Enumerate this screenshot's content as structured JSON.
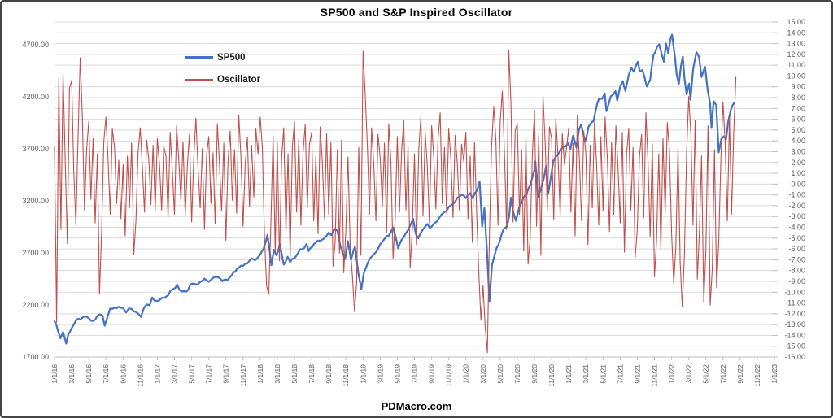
{
  "page": {
    "footer": "PDMacro.com"
  },
  "chart_data": {
    "type": "line",
    "title": "SP500 and S&P Inspired Oscillator",
    "legend": [
      {
        "name": "SP500",
        "color": "#4472C4"
      },
      {
        "name": "Oscillator",
        "color": "#C0504D"
      }
    ],
    "grid_color": "#D9D9D9",
    "axis_line_color": "#BFBFBF",
    "axis_text_color": "#595959",
    "x_axis": {
      "months_total": 84,
      "labels": [
        "1/1/16",
        "3/1/16",
        "5/1/16",
        "7/1/16",
        "9/1/16",
        "11/1/16",
        "1/1/17",
        "3/1/17",
        "5/1/17",
        "7/1/17",
        "9/1/17",
        "11/1/17",
        "1/1/18",
        "3/1/18",
        "5/1/18",
        "7/1/18",
        "9/1/18",
        "11/1/18",
        "1/1/19",
        "3/1/19",
        "5/1/19",
        "7/1/19",
        "9/1/19",
        "11/1/19",
        "1/1/20",
        "3/1/20",
        "5/1/20",
        "7/1/20",
        "9/1/20",
        "11/1/20",
        "1/1/21",
        "3/1/21",
        "5/1/21",
        "7/1/21",
        "9/1/21",
        "11/1/21",
        "1/1/22",
        "3/1/22",
        "5/1/22",
        "7/1/22",
        "9/1/22",
        "11/1/22",
        "1/1/23"
      ],
      "label_months_step": 2
    },
    "primary_y_axis": {
      "min": 1700,
      "max": 4920,
      "tick_values": [
        4700,
        4200,
        3700,
        3200,
        2700,
        2200,
        1700
      ],
      "format_decimals": 2
    },
    "secondary_y_axis": {
      "min": -16,
      "max": 15,
      "step": 1,
      "format_decimals": 2
    },
    "series": [
      {
        "name": "SP500",
        "axis": "primary",
        "color": "#4472C4",
        "width": 2.2,
        "points": [
          [
            0,
            2044
          ],
          [
            0.2,
            2013
          ],
          [
            0.45,
            1940
          ],
          [
            0.7,
            1880
          ],
          [
            1.0,
            1940
          ],
          [
            1.37,
            1829
          ],
          [
            1.6,
            1918
          ],
          [
            2.0,
            1978
          ],
          [
            2.5,
            2050
          ],
          [
            3.0,
            2060
          ],
          [
            3.6,
            2092
          ],
          [
            4.1,
            2065
          ],
          [
            4.5,
            2048
          ],
          [
            5.0,
            2096
          ],
          [
            5.6,
            2099
          ],
          [
            5.85,
            2001
          ],
          [
            6.2,
            2090
          ],
          [
            6.5,
            2166
          ],
          [
            7.0,
            2173
          ],
          [
            7.5,
            2184
          ],
          [
            8.0,
            2171
          ],
          [
            8.35,
            2128
          ],
          [
            8.7,
            2168
          ],
          [
            9.0,
            2161
          ],
          [
            9.5,
            2133
          ],
          [
            10.1,
            2085
          ],
          [
            10.4,
            2164
          ],
          [
            10.8,
            2205
          ],
          [
            11.1,
            2198
          ],
          [
            11.4,
            2271
          ],
          [
            11.9,
            2239
          ],
          [
            12.5,
            2269
          ],
          [
            13.0,
            2280
          ],
          [
            13.8,
            2351
          ],
          [
            14.1,
            2364
          ],
          [
            14.3,
            2396
          ],
          [
            14.6,
            2344
          ],
          [
            15.4,
            2329
          ],
          [
            15.8,
            2389
          ],
          [
            16.5,
            2400
          ],
          [
            16.9,
            2416
          ],
          [
            17.2,
            2430
          ],
          [
            17.5,
            2453
          ],
          [
            18.0,
            2423
          ],
          [
            18.5,
            2460
          ],
          [
            19.0,
            2470
          ],
          [
            19.6,
            2428
          ],
          [
            20.0,
            2444
          ],
          [
            20.4,
            2461
          ],
          [
            20.7,
            2489
          ],
          [
            21.1,
            2519
          ],
          [
            21.5,
            2557
          ],
          [
            22.0,
            2575
          ],
          [
            22.5,
            2599
          ],
          [
            23.0,
            2648
          ],
          [
            23.4,
            2629
          ],
          [
            23.9,
            2674
          ],
          [
            24.4,
            2743
          ],
          [
            24.85,
            2873
          ],
          [
            25.3,
            2581
          ],
          [
            25.6,
            2731
          ],
          [
            25.9,
            2678
          ],
          [
            26.3,
            2787
          ],
          [
            26.75,
            2588
          ],
          [
            27.2,
            2663
          ],
          [
            27.5,
            2614
          ],
          [
            28.0,
            2648
          ],
          [
            28.5,
            2712
          ],
          [
            28.9,
            2735
          ],
          [
            29.4,
            2786
          ],
          [
            29.65,
            2718
          ],
          [
            30.1,
            2759
          ],
          [
            30.5,
            2801
          ],
          [
            31.0,
            2816
          ],
          [
            31.5,
            2840
          ],
          [
            32.0,
            2896
          ],
          [
            32.3,
            2871
          ],
          [
            32.65,
            2931
          ],
          [
            33.0,
            2914
          ],
          [
            33.35,
            2768
          ],
          [
            33.9,
            2641
          ],
          [
            34.25,
            2814
          ],
          [
            34.6,
            2633
          ],
          [
            35.05,
            2760
          ],
          [
            35.45,
            2506
          ],
          [
            35.8,
            2351
          ],
          [
            36.1,
            2510
          ],
          [
            36.5,
            2596
          ],
          [
            37.0,
            2664
          ],
          [
            37.5,
            2707
          ],
          [
            38.0,
            2784
          ],
          [
            38.5,
            2834
          ],
          [
            39.0,
            2867
          ],
          [
            39.5,
            2946
          ],
          [
            40.1,
            2744
          ],
          [
            40.5,
            2826
          ],
          [
            41.0,
            2890
          ],
          [
            41.5,
            2964
          ],
          [
            41.85,
            3026
          ],
          [
            42.15,
            2883
          ],
          [
            42.45,
            2841
          ],
          [
            42.7,
            2889
          ],
          [
            43.0,
            2926
          ],
          [
            43.5,
            2979
          ],
          [
            43.8,
            2940
          ],
          [
            44.3,
            2986
          ],
          [
            44.9,
            3039
          ],
          [
            45.5,
            3094
          ],
          [
            46.0,
            3141
          ],
          [
            46.5,
            3169
          ],
          [
            47.0,
            3231
          ],
          [
            47.5,
            3258
          ],
          [
            48.0,
            3226
          ],
          [
            48.5,
            3274
          ],
          [
            48.8,
            3226
          ],
          [
            49.3,
            3298
          ],
          [
            49.6,
            3386
          ],
          [
            49.9,
            2954
          ],
          [
            50.15,
            3130
          ],
          [
            50.45,
            2741
          ],
          [
            50.75,
            2237
          ],
          [
            51.05,
            2584
          ],
          [
            51.3,
            2663
          ],
          [
            51.6,
            2750
          ],
          [
            52.0,
            2830
          ],
          [
            52.4,
            2930
          ],
          [
            52.8,
            2955
          ],
          [
            53.05,
            3055
          ],
          [
            53.25,
            3232
          ],
          [
            53.5,
            3098
          ],
          [
            53.85,
            3009
          ],
          [
            54.2,
            3130
          ],
          [
            54.5,
            3185
          ],
          [
            54.75,
            3235
          ],
          [
            55.1,
            3271
          ],
          [
            55.5,
            3349
          ],
          [
            56.0,
            3500
          ],
          [
            56.1,
            3581
          ],
          [
            56.4,
            3237
          ],
          [
            56.7,
            3298
          ],
          [
            57.1,
            3419
          ],
          [
            57.35,
            3534
          ],
          [
            57.6,
            3270
          ],
          [
            57.95,
            3443
          ],
          [
            58.2,
            3585
          ],
          [
            58.6,
            3635
          ],
          [
            58.9,
            3669
          ],
          [
            59.4,
            3722
          ],
          [
            59.9,
            3756
          ],
          [
            60.2,
            3700
          ],
          [
            60.5,
            3826
          ],
          [
            60.9,
            3714
          ],
          [
            61.2,
            3886
          ],
          [
            61.45,
            3935
          ],
          [
            61.9,
            3768
          ],
          [
            62.3,
            3910
          ],
          [
            62.55,
            3943
          ],
          [
            62.9,
            3973
          ],
          [
            63.3,
            4128
          ],
          [
            63.55,
            4185
          ],
          [
            63.9,
            4181
          ],
          [
            64.2,
            4233
          ],
          [
            64.4,
            4063
          ],
          [
            64.9,
            4204
          ],
          [
            65.2,
            4227
          ],
          [
            65.45,
            4255
          ],
          [
            65.65,
            4166
          ],
          [
            66.0,
            4298
          ],
          [
            66.3,
            4352
          ],
          [
            66.6,
            4258
          ],
          [
            67.0,
            4411
          ],
          [
            67.3,
            4480
          ],
          [
            67.6,
            4441
          ],
          [
            68.05,
            4537
          ],
          [
            68.3,
            4443
          ],
          [
            68.6,
            4458
          ],
          [
            69.1,
            4300
          ],
          [
            69.5,
            4363
          ],
          [
            69.9,
            4605
          ],
          [
            70.3,
            4682
          ],
          [
            70.55,
            4705
          ],
          [
            70.9,
            4594
          ],
          [
            71.1,
            4538
          ],
          [
            71.35,
            4713
          ],
          [
            71.6,
            4621
          ],
          [
            71.9,
            4766
          ],
          [
            72.05,
            4797
          ],
          [
            72.4,
            4577
          ],
          [
            72.6,
            4410
          ],
          [
            72.85,
            4326
          ],
          [
            73.1,
            4501
          ],
          [
            73.3,
            4587
          ],
          [
            73.5,
            4380
          ],
          [
            73.75,
            4225
          ],
          [
            74.05,
            4328
          ],
          [
            74.2,
            4173
          ],
          [
            74.5,
            4456
          ],
          [
            74.9,
            4631
          ],
          [
            75.2,
            4583
          ],
          [
            75.5,
            4392
          ],
          [
            75.9,
            4488
          ],
          [
            76.2,
            4271
          ],
          [
            76.5,
            4131
          ],
          [
            76.65,
            3901
          ],
          [
            76.9,
            4158
          ],
          [
            77.2,
            4121
          ],
          [
            77.5,
            3667
          ],
          [
            77.8,
            3795
          ],
          [
            78.1,
            3821
          ],
          [
            78.35,
            3790
          ],
          [
            78.6,
            3961
          ],
          [
            78.9,
            4072
          ],
          [
            79.1,
            4118
          ],
          [
            79.3,
            4145
          ]
        ]
      },
      {
        "name": "Oscillator",
        "axis": "secondary",
        "color": "#C0504D",
        "width": 1.1,
        "start_month": 0,
        "step_month": 0.25,
        "values": [
          3.5,
          -12.8,
          9.8,
          -4.2,
          10.3,
          2.1,
          -5.5,
          8.9,
          9.6,
          1.2,
          -3.8,
          4.5,
          11.7,
          6.3,
          -2.5,
          3.2,
          5.8,
          -1.4,
          4.2,
          -3.6,
          2.8,
          -10.2,
          -4.5,
          3.9,
          6.2,
          2.4,
          -2.8,
          5.1,
          3.4,
          -1.8,
          2.2,
          -3.2,
          1.8,
          -4.8,
          2.6,
          -2.2,
          3.8,
          -6.5,
          -3.4,
          2.9,
          5.2,
          1.6,
          -2.6,
          4.1,
          2.3,
          -1.9,
          3.6,
          -2.4,
          4.2,
          1.8,
          -2.4,
          3.5,
          2.6,
          -3.1,
          4.8,
          1.2,
          -2.8,
          5.4,
          2.2,
          -1.6,
          3.9,
          -2.9,
          1.7,
          4.6,
          -3.5,
          2.4,
          6.1,
          1.4,
          -2.2,
          3.3,
          -4.2,
          2.7,
          4.4,
          -1.8,
          2.9,
          -3.7,
          5.6,
          1.9,
          -2.5,
          3.8,
          -5.2,
          2.1,
          4.9,
          -1.5,
          3.2,
          -2.7,
          6.4,
          2.5,
          -3.9,
          1.8,
          4.3,
          -2.1,
          3.6,
          -1.2,
          5.1,
          2.8,
          6.2,
          3.4,
          -4.8,
          -9.5,
          -10.2,
          -3.6,
          4.5,
          -6.2,
          3.8,
          -7.1,
          2.4,
          5.2,
          -4.4,
          2.8,
          -6.8,
          3.5,
          5.8,
          -2.6,
          4.2,
          -3.8,
          2.9,
          5.5,
          -2.2,
          3.7,
          4.8,
          -3.4,
          2.6,
          -4.6,
          5.3,
          2.1,
          -3.2,
          4.7,
          -2.8,
          3.9,
          -7.6,
          -5.4,
          3.2,
          -6.4,
          4.1,
          -8.2,
          -4.2,
          2.5,
          -5.8,
          -8.4,
          -11.8,
          -9.1,
          3.4,
          -6.6,
          12.3,
          8.4,
          3.6,
          -2.8,
          5.2,
          1.8,
          -3.4,
          4.6,
          2.4,
          -2.1,
          3.8,
          -4.5,
          5.6,
          2.2,
          -6.9,
          -3.2,
          4.4,
          -2.6,
          3.1,
          5.9,
          -2.4,
          3.5,
          -7.8,
          -4.1,
          2.8,
          -5.6,
          3.3,
          6.2,
          -2.9,
          4.8,
          1.6,
          -3.6,
          5.4,
          2.6,
          -2.3,
          4.2,
          6.6,
          -1.8,
          3.4,
          -2.7,
          5.1,
          2.3,
          -3.1,
          4.5,
          1.9,
          -2.5,
          3.7,
          2.1,
          4.8,
          -3.2,
          2.6,
          -5.4,
          3.9,
          -2.5,
          -8.1,
          -12.6,
          -9.4,
          -13.2,
          -15.6,
          -4.6,
          3.5,
          7.2,
          4.1,
          -3.8,
          5.8,
          8.6,
          2.9,
          -4.2,
          12.4,
          7.8,
          -3.5,
          4.9,
          5.6,
          -2.8,
          3.2,
          -6.2,
          4.4,
          -7.4,
          -5.1,
          2.7,
          6.8,
          -3.9,
          4.6,
          -6.6,
          8.2,
          3.8,
          -2.4,
          5.3,
          4.2,
          -3.3,
          6.1,
          2.5,
          -2.9,
          4.7,
          1.8,
          3.4,
          5.2,
          -2.6,
          3.8,
          -4.8,
          6.4,
          2.2,
          -3.4,
          4.9,
          2.8,
          -5.6,
          3.6,
          -2.2,
          5.8,
          1.9,
          -3.8,
          4.4,
          -2.5,
          6.2,
          2.4,
          -4.4,
          3.9,
          -2.8,
          5.4,
          1.6,
          -3.6,
          4.8,
          -6.3,
          2.9,
          5.1,
          -2.4,
          3.4,
          -6.8,
          -4.2,
          2.6,
          4.6,
          -3.1,
          6.6,
          2.1,
          -4.9,
          3.7,
          -8.6,
          -5.2,
          2.8,
          -6.1,
          4.2,
          -2.7,
          5.7,
          3.2,
          -4.6,
          -9.2,
          -5.8,
          3.4,
          -7.2,
          -11.4,
          -6.4,
          2.8,
          8.1,
          4.6,
          -3.8,
          5.9,
          -8.8,
          -4.4,
          2.6,
          -10.9,
          -6.2,
          5.4,
          -11.2,
          -7.8,
          3.2,
          -9.6,
          -5.4,
          2.4,
          7.6,
          3.8,
          -3.4,
          6.2,
          -2.8,
          4.8,
          9.9
        ]
      }
    ]
  }
}
